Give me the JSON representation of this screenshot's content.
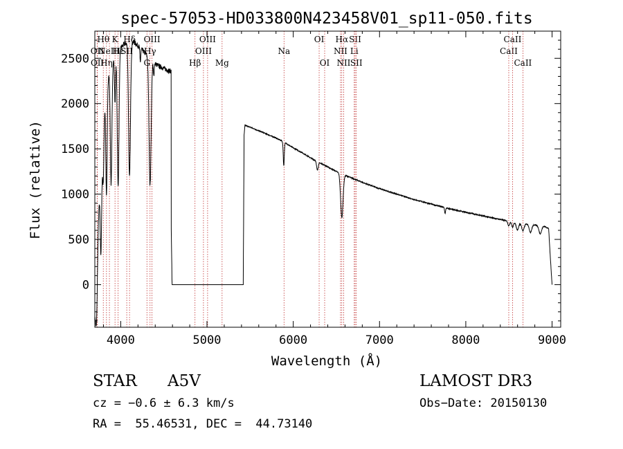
{
  "chart_data": {
    "type": "line",
    "title": "spec-57053-HD033800N423458V01_sp11-050.fits",
    "xlabel": "Wavelength (Å)",
    "ylabel": "Flux (relative)",
    "xlim": [
      3700,
      9100
    ],
    "ylim": [
      -470,
      2800
    ],
    "xticks": [
      {
        "value": 4000,
        "label": "4000"
      },
      {
        "value": 5000,
        "label": "5000"
      },
      {
        "value": 6000,
        "label": "6000"
      },
      {
        "value": 7000,
        "label": "7000"
      },
      {
        "value": 8000,
        "label": "8000"
      },
      {
        "value": 9000,
        "label": "9000"
      }
    ],
    "yticks": [
      {
        "value": 0,
        "label": "0"
      },
      {
        "value": 500,
        "label": "500"
      },
      {
        "value": 1000,
        "label": "1000"
      },
      {
        "value": 1500,
        "label": "1500"
      },
      {
        "value": 2000,
        "label": "2000"
      },
      {
        "value": 2500,
        "label": "2500"
      }
    ],
    "continuum": [
      [
        3700,
        -300
      ],
      [
        3720,
        300
      ],
      [
        3750,
        900
      ],
      [
        3780,
        1400
      ],
      [
        3800,
        1900
      ],
      [
        3830,
        2150
      ],
      [
        3860,
        2300
      ],
      [
        3900,
        2450
      ],
      [
        3950,
        2550
      ],
      [
        4000,
        2620
      ],
      [
        4050,
        2660
      ],
      [
        4100,
        2680
      ],
      [
        4150,
        2680
      ],
      [
        4200,
        2640
      ],
      [
        4250,
        2590
      ],
      [
        4300,
        2540
      ],
      [
        4350,
        2490
      ],
      [
        4400,
        2440
      ],
      [
        4450,
        2410
      ],
      [
        4500,
        2390
      ],
      [
        4560,
        2360
      ],
      [
        4585,
        2360
      ],
      [
        4586,
        600
      ],
      [
        4595,
        0
      ],
      [
        5420,
        0
      ],
      [
        5430,
        1650
      ],
      [
        5440,
        1760
      ],
      [
        5500,
        1740
      ],
      [
        5600,
        1700
      ],
      [
        5700,
        1660
      ],
      [
        5800,
        1620
      ],
      [
        5900,
        1570
      ],
      [
        6000,
        1510
      ],
      [
        6100,
        1460
      ],
      [
        6200,
        1400
      ],
      [
        6300,
        1350
      ],
      [
        6400,
        1300
      ],
      [
        6500,
        1250
      ],
      [
        6620,
        1200
      ],
      [
        6700,
        1170
      ],
      [
        6800,
        1130
      ],
      [
        7000,
        1060
      ],
      [
        7200,
        1000
      ],
      [
        7400,
        940
      ],
      [
        7600,
        890
      ],
      [
        7800,
        840
      ],
      [
        8000,
        800
      ],
      [
        8200,
        760
      ],
      [
        8400,
        720
      ],
      [
        8500,
        700
      ],
      [
        8700,
        670
      ],
      [
        8900,
        650
      ],
      [
        8960,
        620
      ],
      [
        8980,
        300
      ],
      [
        9000,
        0
      ]
    ],
    "absorption_features": [
      {
        "center": 3720,
        "depth": 700,
        "width": 10
      },
      {
        "center": 3771,
        "depth": 900,
        "width": 8
      },
      {
        "center": 3798,
        "depth": 700,
        "width": 8
      },
      {
        "center": 3835,
        "depth": 1200,
        "width": 8
      },
      {
        "center": 3889,
        "depth": 1300,
        "width": 9
      },
      {
        "center": 3934,
        "depth": 500,
        "width": 6
      },
      {
        "center": 3970,
        "depth": 1500,
        "width": 10
      },
      {
        "center": 4102,
        "depth": 1500,
        "width": 11
      },
      {
        "center": 4227,
        "depth": 150,
        "width": 5
      },
      {
        "center": 4340,
        "depth": 1400,
        "width": 12
      },
      {
        "center": 4383,
        "depth": 150,
        "width": 5
      },
      {
        "center": 5890,
        "depth": 260,
        "width": 6
      },
      {
        "center": 6280,
        "depth": 90,
        "width": 10
      },
      {
        "center": 6563,
        "depth": 480,
        "width": 14
      },
      {
        "center": 7760,
        "depth": 60,
        "width": 6
      },
      {
        "center": 8498,
        "depth": 50,
        "width": 10
      },
      {
        "center": 8542,
        "depth": 60,
        "width": 10
      },
      {
        "center": 8598,
        "depth": 80,
        "width": 14
      },
      {
        "center": 8662,
        "depth": 80,
        "width": 14
      },
      {
        "center": 8750,
        "depth": 90,
        "width": 14
      },
      {
        "center": 8863,
        "depth": 90,
        "width": 16
      }
    ],
    "line_markers": [
      {
        "wavelength": 3727,
        "label": "OII",
        "row": 1
      },
      {
        "wavelength": 3729,
        "label": "OII",
        "row": 2
      },
      {
        "wavelength": 3798,
        "label": "Hθ",
        "row": 0
      },
      {
        "wavelength": 3835,
        "label": "Hη",
        "row": 2
      },
      {
        "wavelength": 3869,
        "label": "NeIII",
        "row": 1
      },
      {
        "wavelength": 3934,
        "label": "K",
        "row": 0
      },
      {
        "wavelength": 3970,
        "label": "Hε",
        "row": 1
      },
      {
        "wavelength": 4102,
        "label": "Hδ",
        "row": 0
      },
      {
        "wavelength": 4070,
        "label": "SII",
        "row": 1
      },
      {
        "wavelength": 4304,
        "label": "G",
        "row": 2
      },
      {
        "wavelength": 4340,
        "label": "Hγ",
        "row": 1
      },
      {
        "wavelength": 4363,
        "label": "OIII",
        "row": 0
      },
      {
        "wavelength": 4861,
        "label": "Hβ",
        "row": 2
      },
      {
        "wavelength": 4959,
        "label": "OIII",
        "row": 1
      },
      {
        "wavelength": 5007,
        "label": "OIII",
        "row": 0
      },
      {
        "wavelength": 5175,
        "label": "Mg",
        "row": 2
      },
      {
        "wavelength": 5893,
        "label": "Na",
        "row": 1
      },
      {
        "wavelength": 6300,
        "label": "OI",
        "row": 0
      },
      {
        "wavelength": 6364,
        "label": "OI",
        "row": 2
      },
      {
        "wavelength": 6548,
        "label": "NII",
        "row": 1
      },
      {
        "wavelength": 6563,
        "label": "Hα",
        "row": 0
      },
      {
        "wavelength": 6584,
        "label": "NII",
        "row": 2
      },
      {
        "wavelength": 6707,
        "label": "Li",
        "row": 1
      },
      {
        "wavelength": 6717,
        "label": "SII",
        "row": 0
      },
      {
        "wavelength": 6731,
        "label": "SII",
        "row": 2
      },
      {
        "wavelength": 8498,
        "label": "CaII",
        "row": 1
      },
      {
        "wavelength": 8542,
        "label": "CaII",
        "row": 0
      },
      {
        "wavelength": 8662,
        "label": "CaII",
        "row": 2
      }
    ]
  },
  "info": {
    "class": "STAR",
    "subclass": "A5V",
    "survey": "LAMOST DR3",
    "cz": "cz = −0.6 ± 6.3 km/s",
    "obs_date": "Obs−Date: 20150130",
    "coords": "RA =  55.46531, DEC =  44.73140"
  },
  "colors": {
    "marker": "#c03030",
    "line": "#000000",
    "background": "#ffffff"
  }
}
